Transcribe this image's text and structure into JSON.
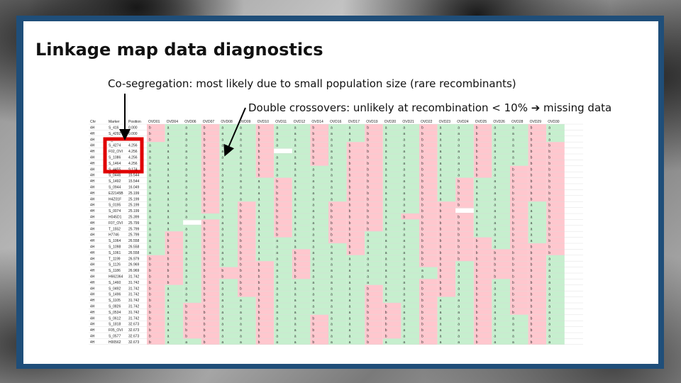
{
  "slide": {
    "title": "Linkage map data diagnostics",
    "note_cosegregation": "Co-segregation: most likely due to small population size (rare recombinants)",
    "note_double_crossovers": "Double crossovers: unlikely at recombination < 10% ➔ missing data"
  },
  "colors": {
    "frame": "#1f4e79",
    "parent_a": "#c6efce",
    "parent_b": "#ffc7ce",
    "missing": "#ffffff",
    "highlight_box": "#e00000",
    "arrow": "#000000"
  },
  "table": {
    "headers": [
      "Chr",
      "Marker",
      "Position",
      "OVD01",
      "OVD04",
      "OVD06",
      "OVD07",
      "OVD08",
      "OVD09",
      "OVD10",
      "OVD11",
      "OVD12",
      "OVD14",
      "OVD16",
      "OVD17",
      "OVD19",
      "OVD20",
      "OVD21",
      "OVD22",
      "OVD23",
      "OVD24",
      "OVD25",
      "OVD26",
      "OVD28",
      "OVD29",
      "OVD30"
    ],
    "rows": [
      [
        "4H",
        "S_416",
        "0.000"
      ],
      [
        "4H",
        "S_4292",
        "0.000"
      ],
      [
        "4H",
        "S_2081",
        "1.259"
      ],
      [
        "4H",
        "S_4274",
        "4.256"
      ],
      [
        "4H",
        "F02_OVI",
        "4.256"
      ],
      [
        "4H",
        "S_1086",
        "4.256"
      ],
      [
        "4H",
        "S_1464",
        "4.256"
      ],
      [
        "4H",
        "S_4455",
        "9.174"
      ],
      [
        "4H",
        "S_0446",
        "15.544"
      ],
      [
        "4H",
        "S_1492",
        "15.544"
      ],
      [
        "4H",
        "S_0944",
        "16.049"
      ],
      [
        "4H",
        "E22145B",
        "25.199"
      ],
      [
        "4H",
        "H4Z01F",
        "25.199"
      ],
      [
        "4H",
        "S_0195",
        "25.199"
      ],
      [
        "4H",
        "S_0074",
        "25.199"
      ],
      [
        "4H",
        "H045D1",
        "25.399"
      ],
      [
        "4H",
        "F07_OVI",
        "25.799"
      ],
      [
        "4H",
        "T_1552",
        "25.799"
      ],
      [
        "4H",
        "H7746",
        "25.799"
      ],
      [
        "4H",
        "S_1064",
        "26.558"
      ],
      [
        "4H",
        "S_1098",
        "26.558"
      ],
      [
        "4H",
        "S_1061",
        "26.558"
      ],
      [
        "4H",
        "T_1199",
        "26.979"
      ],
      [
        "4H",
        "S_1126",
        "26.969"
      ],
      [
        "4H",
        "S_1186",
        "26.969"
      ],
      [
        "4H",
        "H662364",
        "31.742"
      ],
      [
        "4H",
        "S_1460",
        "31.742"
      ],
      [
        "4H",
        "S_0492",
        "31.742"
      ],
      [
        "4H",
        "S_1496",
        "31.742"
      ],
      [
        "4H",
        "S_1105",
        "31.742"
      ],
      [
        "4H",
        "S_0826",
        "31.742"
      ],
      [
        "4H",
        "S_0534",
        "31.742"
      ],
      [
        "4H",
        "S_0612",
        "31.742"
      ],
      [
        "4H",
        "S_1818",
        "32.673"
      ],
      [
        "4H",
        "F05_OVI",
        "32.673"
      ],
      [
        "4H",
        "S_0577",
        "32.673"
      ],
      [
        "4H",
        "H00562",
        "32.673"
      ]
    ],
    "genotype_pattern_note": "a = parent A (green), b = parent B (pink), blank = missing"
  },
  "icons": {
    "arrow_1": "down-arrow-icon",
    "arrow_2": "down-left-arrow-icon",
    "highlight": "red-highlight-box"
  }
}
